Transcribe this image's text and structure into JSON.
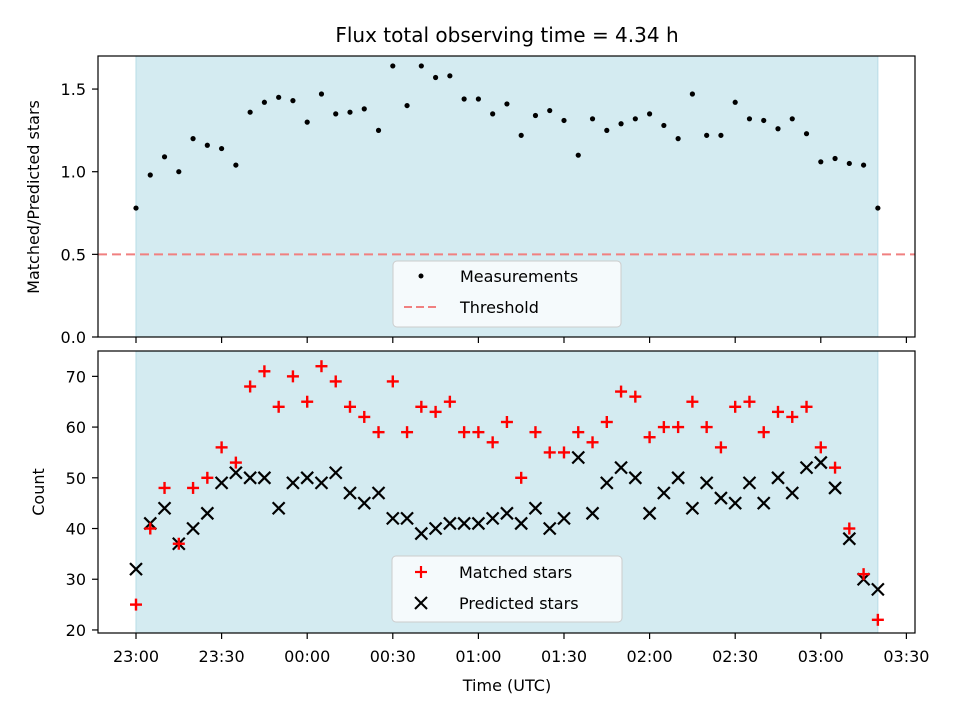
{
  "chart_data": [
    {
      "type": "scatter",
      "title": "Flux total observing time = 4.34 h",
      "ylabel": "Matched/Predicted stars",
      "ylim": [
        0,
        1.7
      ],
      "yticks": [
        "0.0",
        "0.5",
        "1.0",
        "1.5"
      ],
      "ytick_values": [
        0,
        0.5,
        1.0,
        1.5
      ],
      "xlim": [
        "22:54",
        "23:34 (+1d) 03:27"
      ],
      "legend": {
        "placement": "lower center",
        "entries": [
          "Measurements",
          "Threshold"
        ]
      },
      "observing_window": {
        "start": "23:00",
        "end": "03:20"
      },
      "threshold": 0.5,
      "series": [
        {
          "name": "Measurements",
          "marker": "dot",
          "color": "#000000",
          "x": [
            "23:00",
            "23:05",
            "23:10",
            "23:15",
            "23:20",
            "23:25",
            "23:30",
            "23:35",
            "23:40",
            "23:45",
            "23:50",
            "23:55",
            "00:00",
            "00:05",
            "00:10",
            "00:15",
            "00:20",
            "00:25",
            "00:30",
            "00:35",
            "00:40",
            "00:45",
            "00:50",
            "00:55",
            "01:00",
            "01:05",
            "01:10",
            "01:15",
            "01:20",
            "01:25",
            "01:30",
            "01:35",
            "01:40",
            "01:45",
            "01:50",
            "01:55",
            "02:00",
            "02:05",
            "02:10",
            "02:15",
            "02:20",
            "02:25",
            "02:30",
            "02:35",
            "02:40",
            "02:45",
            "02:50",
            "02:55",
            "03:00",
            "03:05",
            "03:10",
            "03:15",
            "03:20"
          ],
          "y": [
            0.78,
            0.98,
            1.09,
            1.0,
            1.2,
            1.16,
            1.14,
            1.04,
            1.36,
            1.42,
            1.45,
            1.43,
            1.3,
            1.47,
            1.35,
            1.36,
            1.38,
            1.25,
            1.64,
            1.4,
            1.64,
            1.57,
            1.58,
            1.44,
            1.44,
            1.35,
            1.41,
            1.22,
            1.34,
            1.37,
            1.31,
            1.1,
            1.32,
            1.25,
            1.29,
            1.32,
            1.35,
            1.28,
            1.2,
            1.47,
            1.22,
            1.22,
            1.42,
            1.32,
            1.31,
            1.26,
            1.32,
            1.23,
            1.06,
            1.08,
            1.05,
            1.04,
            0.78
          ]
        },
        {
          "name": "Threshold",
          "style": "dashed",
          "color": "#f08080",
          "y": 0.5
        }
      ]
    },
    {
      "type": "scatter",
      "xlabel": "Time (UTC)",
      "ylabel": "Count",
      "ylim": [
        19.4,
        75
      ],
      "yticks": [
        "20",
        "30",
        "40",
        "50",
        "60",
        "70"
      ],
      "ytick_values": [
        20,
        30,
        40,
        50,
        60,
        70
      ],
      "xticks": [
        "23:00",
        "23:30",
        "00:00",
        "00:30",
        "01:00",
        "01:30",
        "02:00",
        "02:30",
        "03:00",
        "03:30"
      ],
      "legend": {
        "placement": "lower center",
        "entries": [
          "Matched stars",
          "Predicted stars"
        ]
      },
      "observing_window": {
        "start": "23:00",
        "end": "03:20"
      },
      "series": [
        {
          "name": "Matched stars",
          "marker": "plus",
          "color": "#ff0000",
          "x": [
            "23:00",
            "23:05",
            "23:10",
            "23:15",
            "23:20",
            "23:25",
            "23:30",
            "23:35",
            "23:40",
            "23:45",
            "23:50",
            "23:55",
            "00:00",
            "00:05",
            "00:10",
            "00:15",
            "00:20",
            "00:25",
            "00:30",
            "00:35",
            "00:40",
            "00:45",
            "00:50",
            "00:55",
            "01:00",
            "01:05",
            "01:10",
            "01:15",
            "01:20",
            "01:25",
            "01:30",
            "01:35",
            "01:40",
            "01:45",
            "01:50",
            "01:55",
            "02:00",
            "02:05",
            "02:10",
            "02:15",
            "02:20",
            "02:25",
            "02:30",
            "02:35",
            "02:40",
            "02:45",
            "02:50",
            "02:55",
            "03:00",
            "03:05",
            "03:10",
            "03:15",
            "03:20"
          ],
          "y": [
            25,
            40,
            48,
            37,
            48,
            50,
            56,
            53,
            68,
            71,
            64,
            70,
            65,
            72,
            69,
            64,
            62,
            59,
            69,
            59,
            64,
            63,
            65,
            59,
            59,
            57,
            61,
            50,
            59,
            55,
            55,
            59,
            57,
            61,
            67,
            66,
            58,
            60,
            60,
            65,
            60,
            56,
            64,
            65,
            59,
            63,
            62,
            64,
            56,
            52,
            40,
            31,
            22
          ]
        },
        {
          "name": "Predicted stars",
          "marker": "x",
          "color": "#000000",
          "x": [
            "23:00",
            "23:05",
            "23:10",
            "23:15",
            "23:20",
            "23:25",
            "23:30",
            "23:35",
            "23:40",
            "23:45",
            "23:50",
            "23:55",
            "00:00",
            "00:05",
            "00:10",
            "00:15",
            "00:20",
            "00:25",
            "00:30",
            "00:35",
            "00:40",
            "00:45",
            "00:50",
            "00:55",
            "01:00",
            "01:05",
            "01:10",
            "01:15",
            "01:20",
            "01:25",
            "01:30",
            "01:35",
            "01:40",
            "01:45",
            "01:50",
            "01:55",
            "02:00",
            "02:05",
            "02:10",
            "02:15",
            "02:20",
            "02:25",
            "02:30",
            "02:35",
            "02:40",
            "02:45",
            "02:50",
            "02:55",
            "03:00",
            "03:05",
            "03:10",
            "03:15",
            "03:20"
          ],
          "y": [
            32,
            41,
            44,
            37,
            40,
            43,
            49,
            51,
            50,
            50,
            44,
            49,
            50,
            49,
            51,
            47,
            45,
            47,
            42,
            42,
            39,
            40,
            41,
            41,
            41,
            42,
            43,
            41,
            44,
            40,
            42,
            54,
            43,
            49,
            52,
            50,
            43,
            47,
            50,
            44,
            49,
            46,
            45,
            49,
            45,
            50,
            47,
            52,
            53,
            48,
            38,
            30,
            28
          ]
        }
      ]
    }
  ],
  "colors": {
    "window_fill": "#d4ebf1",
    "window_edge": "#b7dce6",
    "measurement": "#000000",
    "threshold": "#f08080",
    "matched": "#ff0000",
    "predicted": "#000000"
  }
}
